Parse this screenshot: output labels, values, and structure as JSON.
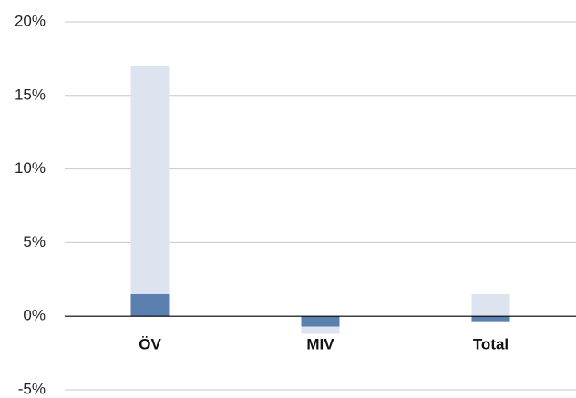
{
  "chart_data": {
    "type": "bar",
    "categories": [
      "ÖV",
      "MIV",
      "Total"
    ],
    "series": [
      {
        "color": "#dde4ef",
        "values": [
          17,
          -1.2,
          1.5
        ]
      },
      {
        "color": "#5b7fae",
        "values": [
          1.5,
          -0.7,
          -0.4
        ]
      }
    ],
    "ylim": [
      -5,
      20
    ],
    "yticks": [
      {
        "value": -5,
        "label": "-5%"
      },
      {
        "value": 0,
        "label": "0%"
      },
      {
        "value": 5,
        "label": "5%"
      },
      {
        "value": 10,
        "label": "10%"
      },
      {
        "value": 15,
        "label": "15%"
      },
      {
        "value": 20,
        "label": "20%"
      }
    ],
    "grid": true
  }
}
